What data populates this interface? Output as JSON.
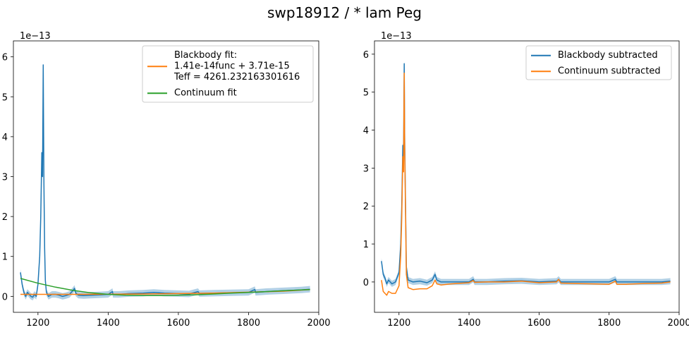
{
  "figure": {
    "suptitle": "swp18912 / * lam Peg"
  },
  "colors": {
    "blue": "#1f77b4",
    "orange": "#ff7f0e",
    "green": "#2ca02c",
    "band": "#1f77b4"
  },
  "chart_data": [
    {
      "type": "line",
      "title": "",
      "xlabel": "",
      "ylabel": "",
      "xlim": [
        1130,
        2000
      ],
      "ylim": [
        -0.4,
        6.4
      ],
      "y_offset_label": "1e−13",
      "xticks": [
        1200,
        1400,
        1600,
        1800,
        2000
      ],
      "yticks": [
        0,
        1,
        2,
        3,
        4,
        5,
        6
      ],
      "xtick_labels": [
        "1200",
        "1400",
        "1600",
        "1800",
        "2000"
      ],
      "ytick_labels": [
        "0",
        "1",
        "2",
        "3",
        "4",
        "5",
        "6"
      ],
      "grid": false,
      "legend_position": "top-right",
      "series": [
        {
          "name": "",
          "color": "#1f77b4",
          "x": [
            1150,
            1155,
            1160,
            1165,
            1170,
            1175,
            1180,
            1185,
            1190,
            1195,
            1200,
            1205,
            1208,
            1211,
            1213,
            1215,
            1216,
            1217,
            1219,
            1221,
            1224,
            1230,
            1240,
            1250,
            1260,
            1270,
            1280,
            1290,
            1300,
            1304,
            1308,
            1315,
            1330,
            1350,
            1380,
            1400,
            1412,
            1414,
            1430,
            1460,
            1500,
            1530,
            1560,
            1600,
            1630,
            1656,
            1660,
            1700,
            1750,
            1800,
            1818,
            1820,
            1850,
            1900,
            1950,
            1975
          ],
          "values": [
            0.6,
            0.3,
            0.1,
            0.0,
            0.1,
            0.05,
            0.0,
            -0.02,
            0.05,
            0.0,
            0.3,
            1.0,
            2.0,
            3.6,
            3.0,
            5.8,
            4.2,
            2.8,
            1.2,
            0.4,
            0.1,
            0.0,
            0.05,
            0.05,
            0.03,
            0.0,
            0.02,
            0.05,
            0.15,
            0.2,
            0.08,
            0.03,
            0.02,
            0.03,
            0.04,
            0.05,
            0.12,
            0.05,
            0.05,
            0.07,
            0.08,
            0.1,
            0.08,
            0.07,
            0.06,
            0.12,
            0.07,
            0.08,
            0.09,
            0.1,
            0.17,
            0.1,
            0.12,
            0.14,
            0.16,
            0.18
          ]
        },
        {
          "name": "Blackbody fit:\n1.41e-14func + 3.71e-15\nTeff = 4261.232163301616",
          "color": "#ff7f0e",
          "x": [
            1150,
            1300,
            1500,
            1700,
            1900,
            1975
          ],
          "values": [
            0.05,
            0.05,
            0.06,
            0.08,
            0.13,
            0.17
          ]
        },
        {
          "name": "Continuum fit",
          "color": "#2ca02c",
          "x": [
            1150,
            1200,
            1250,
            1300,
            1350,
            1400,
            1450,
            1500,
            1550,
            1600,
            1650,
            1700,
            1750,
            1800,
            1850,
            1900,
            1950,
            1975
          ],
          "values": [
            0.45,
            0.33,
            0.23,
            0.15,
            0.09,
            0.05,
            0.03,
            0.02,
            0.02,
            0.03,
            0.04,
            0.06,
            0.08,
            0.1,
            0.12,
            0.14,
            0.16,
            0.17
          ]
        }
      ]
    },
    {
      "type": "line",
      "title": "",
      "xlabel": "",
      "ylabel": "",
      "xlim": [
        1130,
        2000
      ],
      "ylim": [
        -0.8,
        6.35
      ],
      "y_offset_label": "1e−13",
      "xticks": [
        1200,
        1400,
        1600,
        1800,
        2000
      ],
      "yticks": [
        0,
        1,
        2,
        3,
        4,
        5,
        6
      ],
      "xtick_labels": [
        "1200",
        "1400",
        "1600",
        "1800",
        "2000"
      ],
      "ytick_labels": [
        "0",
        "1",
        "2",
        "3",
        "4",
        "5",
        "6"
      ],
      "grid": false,
      "legend_position": "top-right",
      "series": [
        {
          "name": "Blackbody subtracted",
          "color": "#1f77b4",
          "x": [
            1150,
            1155,
            1160,
            1165,
            1170,
            1180,
            1190,
            1200,
            1205,
            1208,
            1211,
            1213,
            1215,
            1216,
            1218,
            1221,
            1226,
            1240,
            1260,
            1280,
            1295,
            1303,
            1308,
            1320,
            1350,
            1400,
            1412,
            1416,
            1450,
            1500,
            1550,
            1600,
            1650,
            1656,
            1662,
            1700,
            1750,
            1800,
            1818,
            1822,
            1850,
            1900,
            1950,
            1975
          ],
          "values": [
            0.55,
            0.2,
            0.1,
            -0.05,
            0.05,
            -0.05,
            0.0,
            0.25,
            1.0,
            2.0,
            3.6,
            3.2,
            5.75,
            4.0,
            2.5,
            0.4,
            0.05,
            0.0,
            0.02,
            -0.02,
            0.05,
            0.2,
            0.05,
            0.0,
            0.0,
            0.0,
            0.07,
            0.0,
            0.0,
            0.02,
            0.03,
            0.0,
            0.02,
            0.07,
            0.0,
            0.0,
            0.0,
            0.0,
            0.07,
            0.0,
            0.0,
            0.0,
            0.0,
            0.02
          ]
        },
        {
          "name": "Continuum subtracted",
          "color": "#ff7f0e",
          "x": [
            1150,
            1155,
            1160,
            1165,
            1170,
            1180,
            1190,
            1200,
            1205,
            1208,
            1211,
            1213,
            1215,
            1216,
            1218,
            1221,
            1226,
            1240,
            1260,
            1280,
            1295,
            1303,
            1308,
            1320,
            1350,
            1400,
            1412,
            1416,
            1450,
            1500,
            1550,
            1600,
            1650,
            1656,
            1662,
            1700,
            1750,
            1800,
            1818,
            1822,
            1850,
            1900,
            1950,
            1975
          ],
          "values": [
            0.05,
            -0.25,
            -0.3,
            -0.35,
            -0.25,
            -0.3,
            -0.3,
            -0.1,
            0.7,
            1.7,
            3.3,
            2.9,
            5.5,
            3.7,
            2.3,
            0.2,
            -0.15,
            -0.2,
            -0.18,
            -0.18,
            -0.1,
            0.05,
            -0.05,
            -0.08,
            -0.05,
            -0.02,
            0.04,
            -0.01,
            0.0,
            0.0,
            0.02,
            -0.02,
            0.0,
            0.07,
            -0.03,
            -0.04,
            -0.05,
            -0.06,
            0.02,
            -0.06,
            -0.06,
            -0.04,
            -0.03,
            0.0
          ]
        }
      ]
    }
  ]
}
